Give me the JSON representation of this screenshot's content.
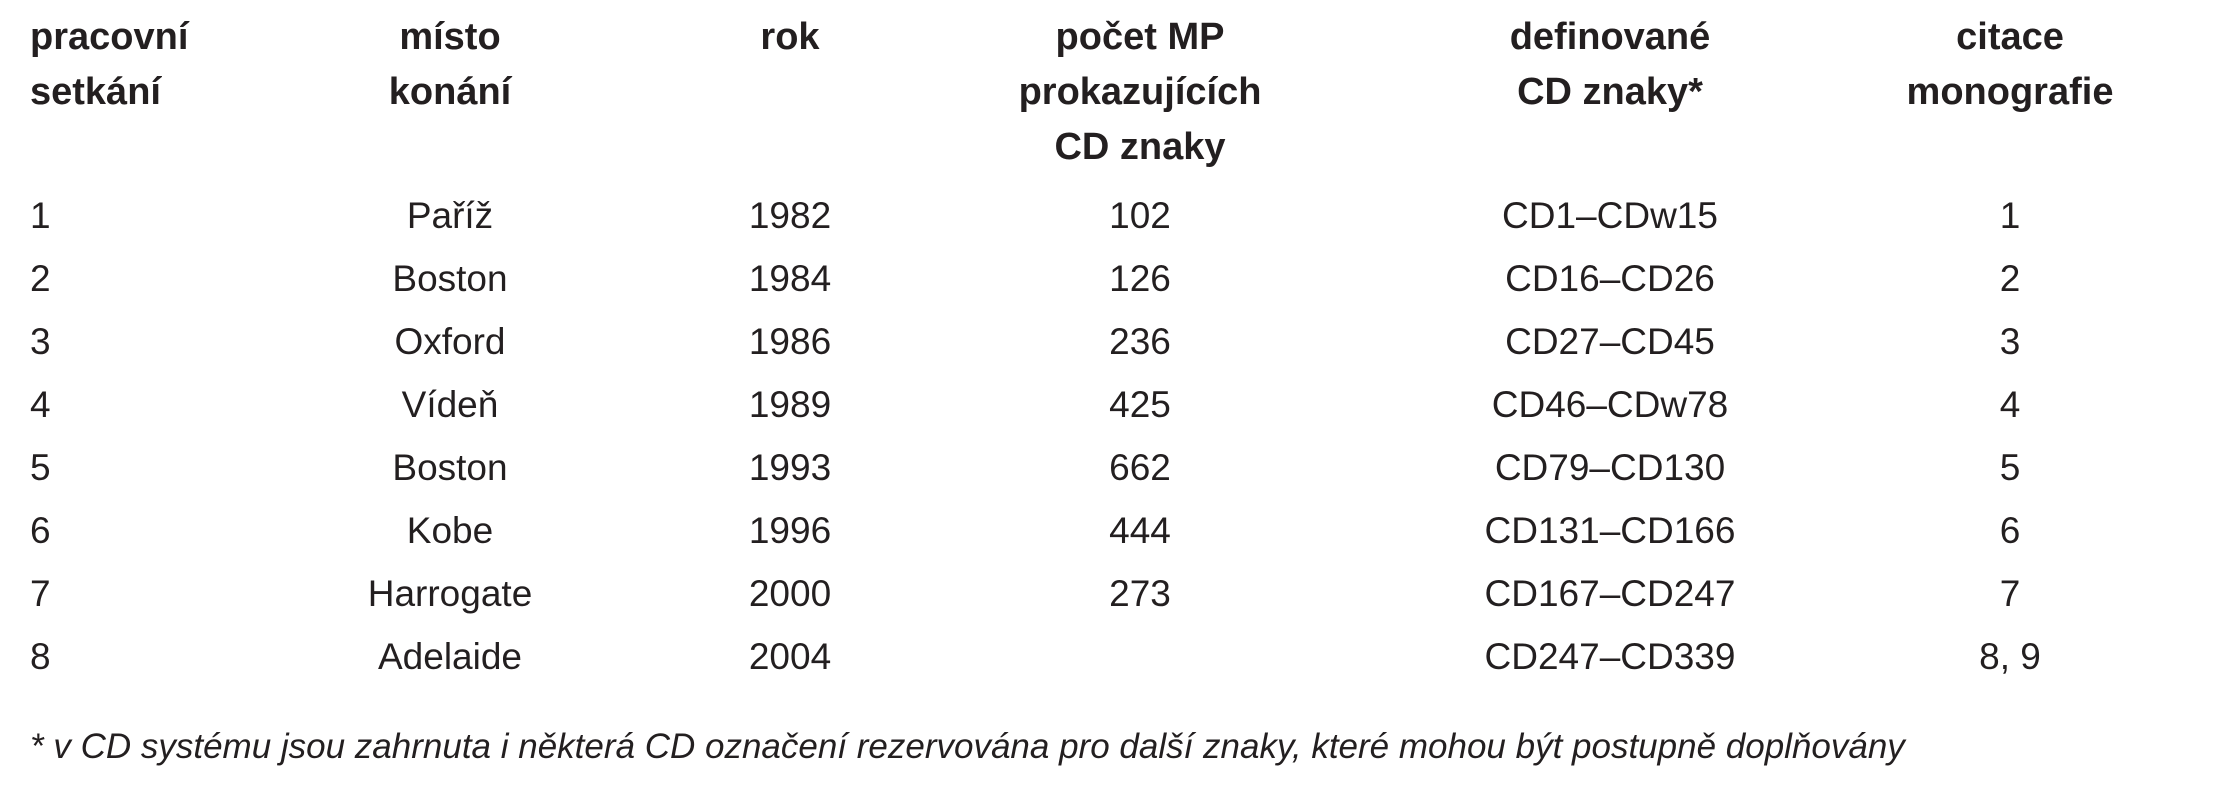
{
  "table": {
    "headers": [
      "pracovní\nsetkání",
      "místo\nkonání",
      "rok",
      "počet MP\nprokazujících\nCD znaky",
      "definované\nCD znaky*",
      "citace\nmonografie"
    ],
    "rows": [
      [
        "1",
        "Paříž",
        "1982",
        "102",
        "CD1–CDw15",
        "1"
      ],
      [
        "2",
        "Boston",
        "1984",
        "126",
        "CD16–CD26",
        "2"
      ],
      [
        "3",
        "Oxford",
        "1986",
        "236",
        "CD27–CD45",
        "3"
      ],
      [
        "4",
        "Vídeň",
        "1989",
        "425",
        "CD46–CDw78",
        "4"
      ],
      [
        "5",
        "Boston",
        "1993",
        "662",
        "CD79–CD130",
        "5"
      ],
      [
        "6",
        "Kobe",
        "1996",
        "444",
        "CD131–CD166",
        "6"
      ],
      [
        "7",
        "Harrogate",
        "2000",
        "273",
        "CD167–CD247",
        "7"
      ],
      [
        "8",
        "Adelaide",
        "2004",
        "",
        "CD247–CD339",
        "8, 9"
      ]
    ]
  },
  "footnote": "* v CD systému jsou zahrnuta i některá CD označení rezervována pro další znaky, které mohou být postupně doplňovány"
}
